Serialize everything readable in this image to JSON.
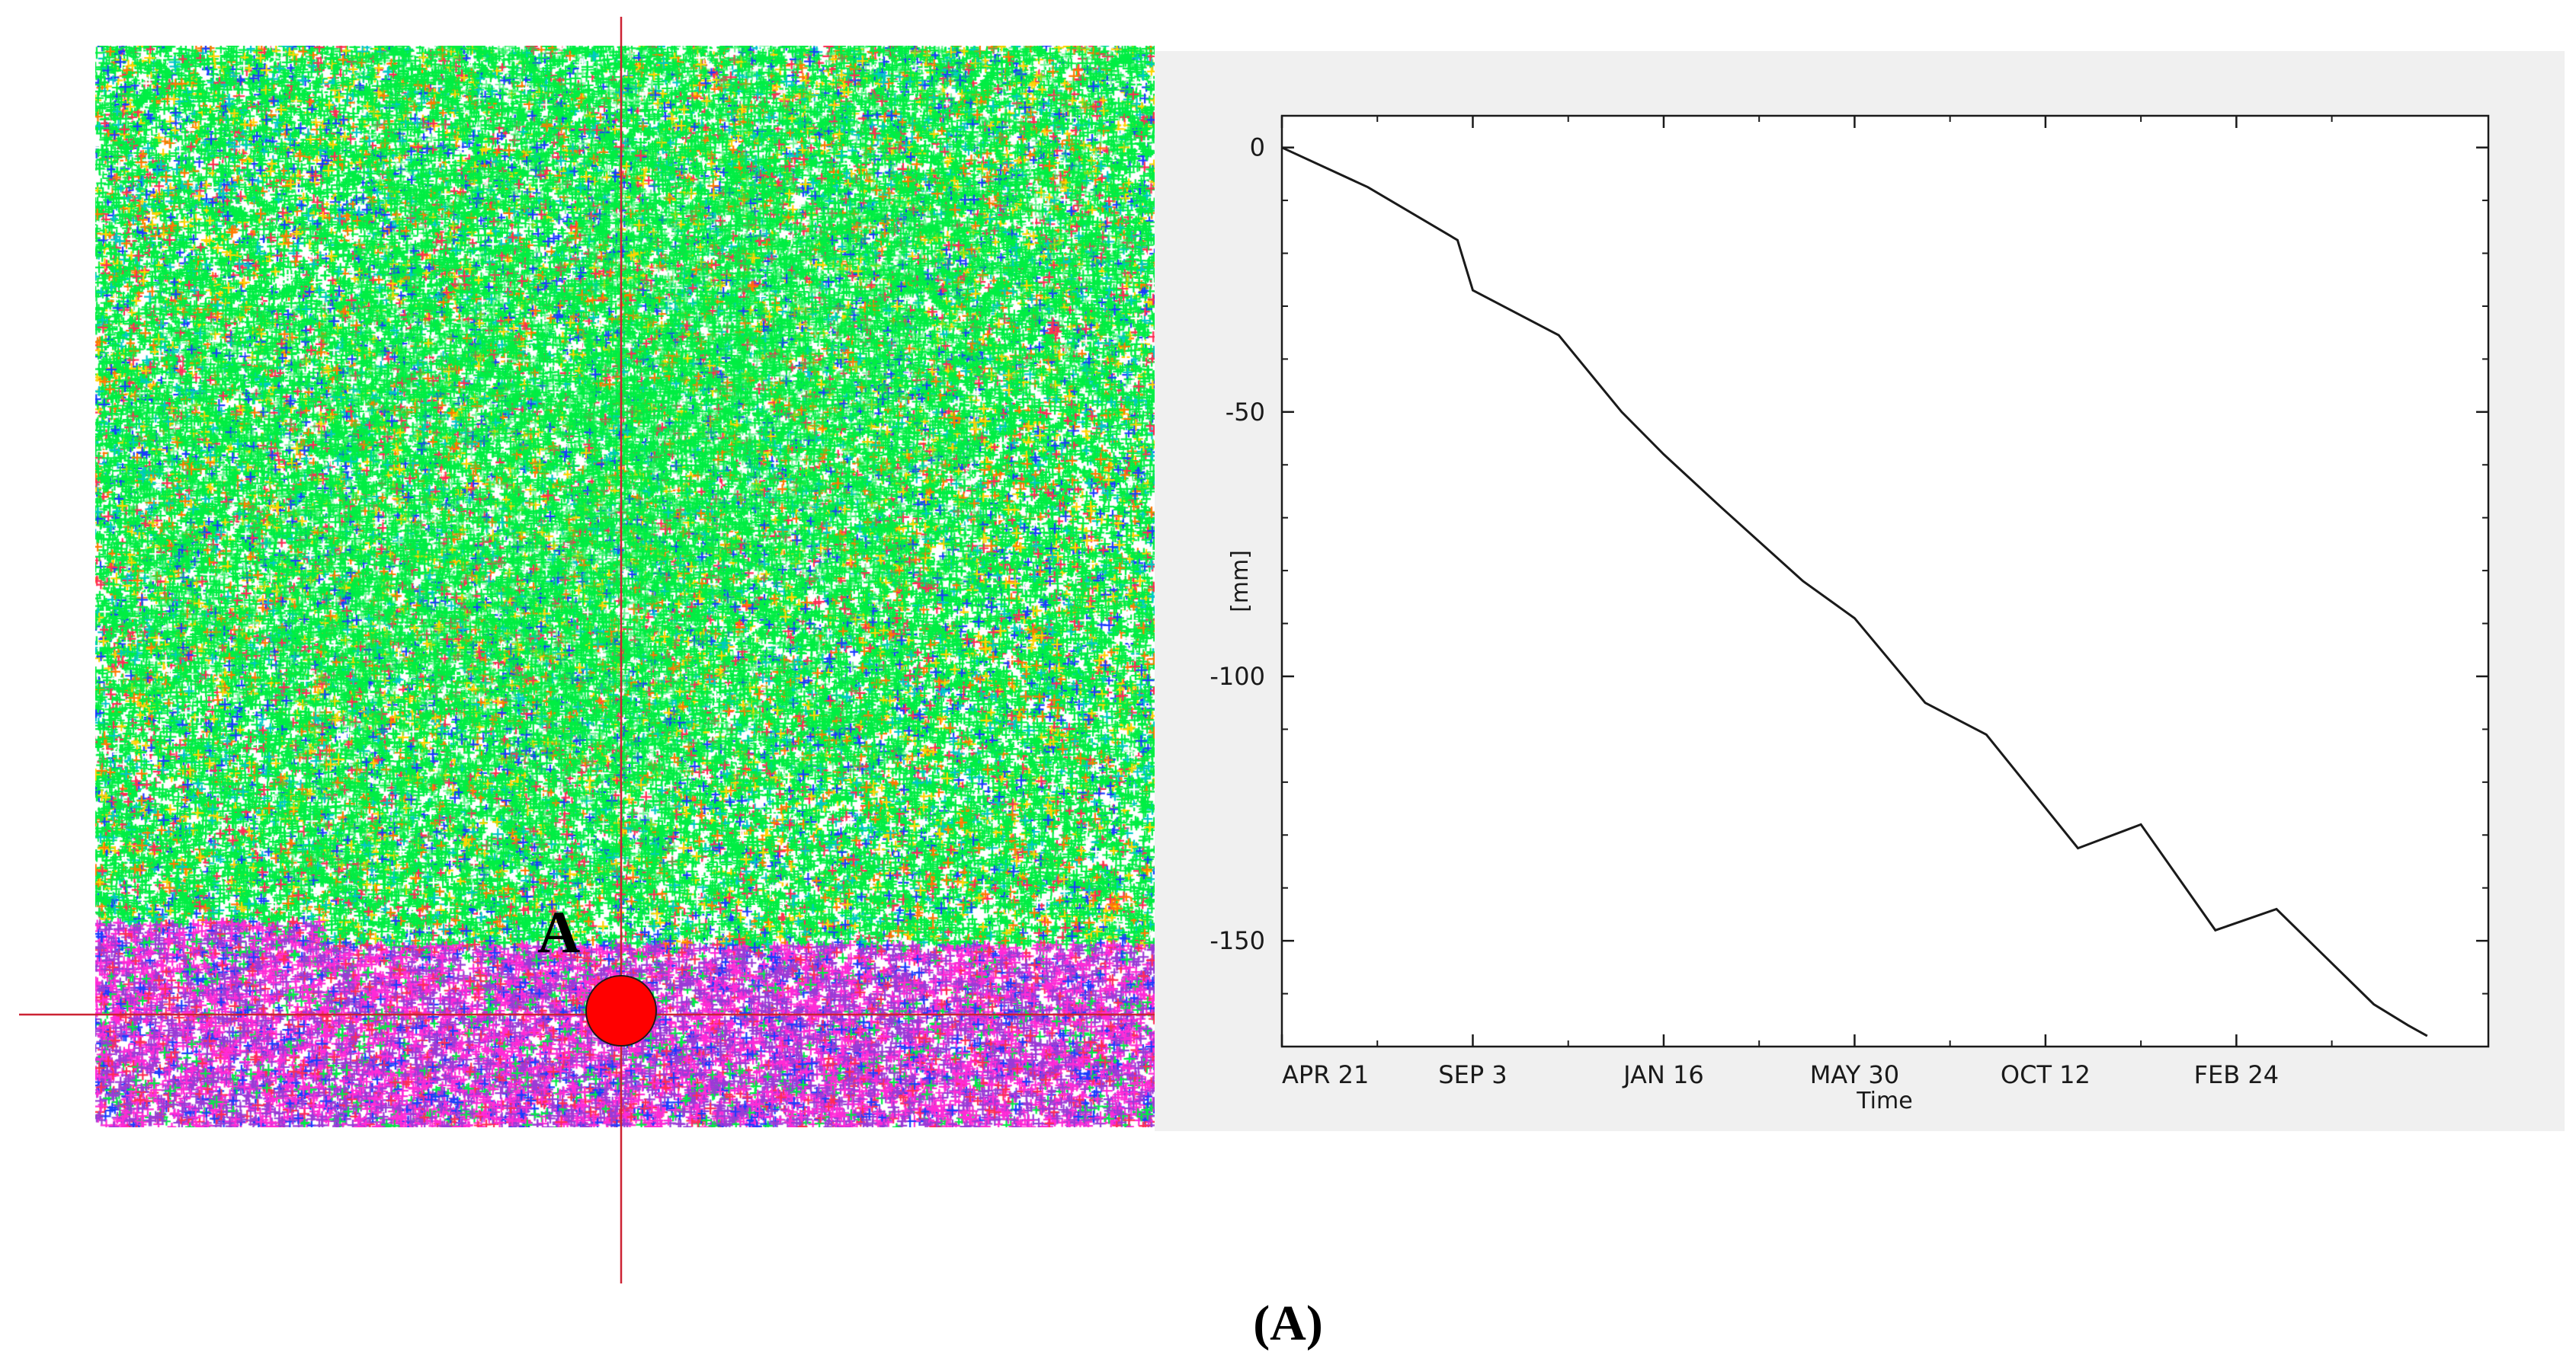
{
  "scatter_map": {
    "point_marker": {
      "label": "A",
      "color": "#ff0000"
    },
    "crosshair_color": "#cc2233",
    "palette": {
      "primary": "#00ee44",
      "secondary": [
        "#00c8c8",
        "#1a3cff",
        "#ffd400",
        "#ff7a00",
        "#ff2d55",
        "#ffffff"
      ],
      "lower_band": [
        "#9b3bd6",
        "#ff2bd6",
        "#1a3cff",
        "#00ee44",
        "#ff2d55"
      ]
    }
  },
  "chart_data": {
    "type": "line",
    "xlabel": "Time",
    "ylabel": "[mm]",
    "x_tick_labels": [
      "APR 21",
      "SEP 3",
      "JAN 16",
      "MAY 30",
      "OCT 12",
      "FEB 24"
    ],
    "y_ticks": [
      0,
      -50,
      -100,
      -150
    ],
    "ylim": [
      -170,
      6
    ],
    "grid": false,
    "series": [
      {
        "color": "#1a1a1a",
        "x": [
          "APR 21",
          "",
          "",
          "SEP 3",
          "",
          "",
          "JAN 16",
          "",
          "",
          "MAY 30",
          "",
          "",
          "OCT 12",
          "",
          "",
          "FEB 24",
          "",
          "",
          ""
        ],
        "points": [
          [
            0,
            0
          ],
          [
            0.45,
            -7.5
          ],
          [
            0.92,
            -17.5
          ],
          [
            1.0,
            -27
          ],
          [
            1.45,
            -35.5
          ],
          [
            1.78,
            -50
          ],
          [
            2.0,
            -58
          ],
          [
            2.3,
            -68
          ],
          [
            2.73,
            -82
          ],
          [
            3.0,
            -89
          ],
          [
            3.37,
            -105
          ],
          [
            3.69,
            -111
          ],
          [
            4.17,
            -132.5
          ],
          [
            4.5,
            -128
          ],
          [
            4.89,
            -148
          ],
          [
            5.21,
            -144
          ],
          [
            5.72,
            -162
          ],
          [
            5.9,
            -166
          ],
          [
            6.0,
            -168
          ]
        ]
      }
    ]
  },
  "caption": "(A)"
}
